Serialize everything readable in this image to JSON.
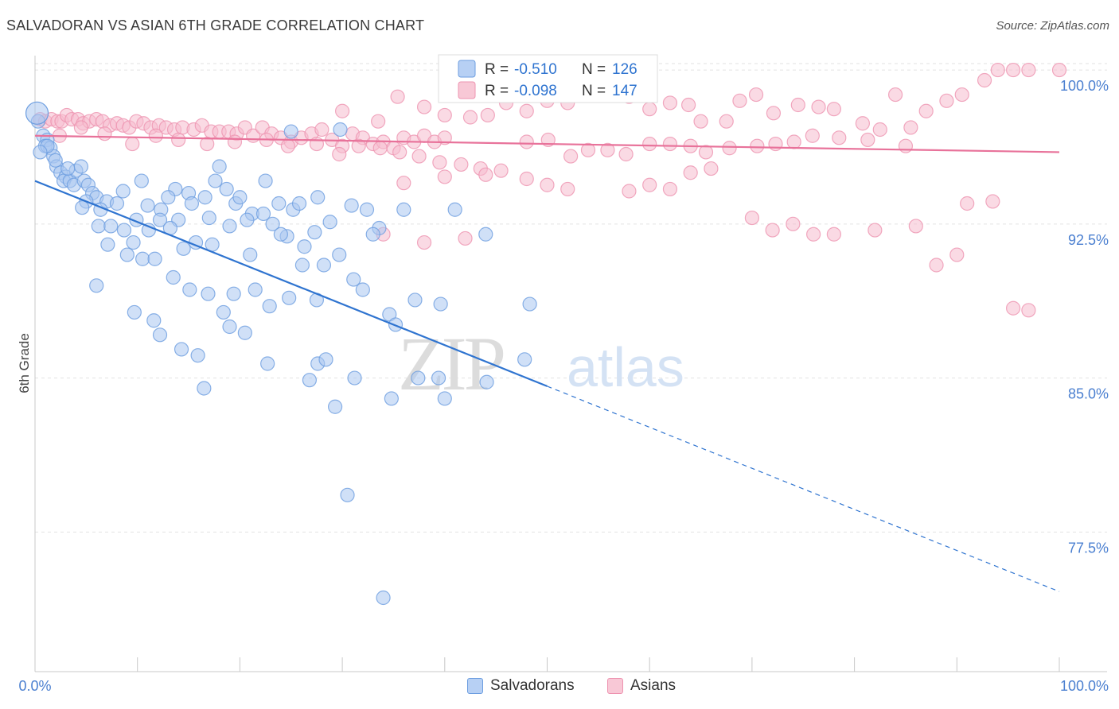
{
  "header": {
    "title": "SALVADORAN VS ASIAN 6TH GRADE CORRELATION CHART",
    "source": "Source: ZipAtlas.com"
  },
  "watermark": {
    "zip": "ZIP",
    "atlas": "atlas"
  },
  "legend": {
    "rows": [
      {
        "r_label": "R =",
        "r_value": "-0.510",
        "n_label": "N =",
        "n_value": "126"
      },
      {
        "r_label": "R =",
        "r_value": "-0.098",
        "n_label": "N =",
        "n_value": "147"
      }
    ],
    "bottom": [
      "Salvadorans",
      "Asians"
    ]
  },
  "colors": {
    "blue_fill": "#a9c6f0",
    "blue_stroke": "#6d9ee0",
    "blue_line": "#2f74d0",
    "pink_fill": "#f6bccd",
    "pink_stroke": "#ee93b0",
    "pink_line": "#e8729a",
    "axis_text": "#4a7fd0",
    "grid": "#e2e2e2"
  },
  "chart_data": {
    "type": "scatter",
    "title": "SALVADORAN VS ASIAN 6TH GRADE CORRELATION CHART",
    "xlabel": "",
    "ylabel": "6th Grade",
    "xlim": [
      0,
      100
    ],
    "ylim": [
      70.7,
      100.7
    ],
    "x_tick_labels": [
      "0.0%",
      "100.0%"
    ],
    "y_ticks": [
      100,
      92.5,
      85,
      77.5
    ],
    "y_tick_labels": [
      "100.0%",
      "92.5%",
      "85.0%",
      "77.5%"
    ],
    "grid": true,
    "legend_position": "top-center",
    "series": [
      {
        "name": "Salvadorans",
        "R": -0.51,
        "N": 126,
        "trend": {
          "x_start": 0,
          "y_start": 94.6,
          "x_end": 100,
          "y_end": 74.6,
          "solid_until_x": 50
        },
        "points": [
          [
            0.3,
            97.5
          ],
          [
            0.8,
            96.8
          ],
          [
            1.2,
            96.6
          ],
          [
            1.0,
            96.3
          ],
          [
            1.5,
            96.2
          ],
          [
            1.8,
            95.8
          ],
          [
            2.1,
            95.3
          ],
          [
            2.5,
            95.0
          ],
          [
            3.0,
            94.8
          ],
          [
            2.8,
            94.6
          ],
          [
            3.4,
            94.6
          ],
          [
            3.8,
            94.4
          ],
          [
            4.0,
            95.1
          ],
          [
            4.5,
            95.3
          ],
          [
            4.8,
            94.6
          ],
          [
            5.2,
            94.4
          ],
          [
            5.6,
            94.0
          ],
          [
            6.0,
            93.8
          ],
          [
            5.0,
            93.6
          ],
          [
            4.6,
            93.3
          ],
          [
            7.0,
            93.6
          ],
          [
            8.6,
            94.1
          ],
          [
            10.4,
            94.6
          ],
          [
            11.0,
            93.4
          ],
          [
            12.3,
            93.2
          ],
          [
            13.7,
            94.2
          ],
          [
            14.0,
            92.7
          ],
          [
            15.0,
            94.0
          ],
          [
            15.3,
            93.5
          ],
          [
            16.6,
            93.8
          ],
          [
            17.6,
            94.6
          ],
          [
            18.0,
            95.3
          ],
          [
            18.7,
            94.2
          ],
          [
            19.6,
            93.5
          ],
          [
            21.2,
            93.0
          ],
          [
            22.3,
            93.0
          ],
          [
            22.5,
            94.6
          ],
          [
            23.8,
            93.5
          ],
          [
            25.2,
            93.2
          ],
          [
            25.8,
            93.5
          ],
          [
            27.3,
            92.1
          ],
          [
            27.6,
            93.8
          ],
          [
            29.8,
            97.1
          ],
          [
            30.9,
            93.4
          ],
          [
            32.4,
            93.2
          ],
          [
            33.6,
            92.3
          ],
          [
            6.2,
            92.4
          ],
          [
            7.4,
            92.4
          ],
          [
            8.7,
            92.2
          ],
          [
            9.9,
            92.7
          ],
          [
            11.1,
            92.2
          ],
          [
            12.2,
            92.7
          ],
          [
            13.2,
            92.3
          ],
          [
            14.5,
            91.3
          ],
          [
            15.7,
            91.6
          ],
          [
            17.3,
            91.5
          ],
          [
            19.0,
            92.4
          ],
          [
            20.7,
            92.7
          ],
          [
            23.2,
            92.5
          ],
          [
            24.6,
            91.9
          ],
          [
            26.3,
            91.4
          ],
          [
            28.2,
            90.5
          ],
          [
            29.7,
            91.0
          ],
          [
            31.1,
            89.8
          ],
          [
            26.1,
            90.5
          ],
          [
            7.1,
            91.5
          ],
          [
            9.6,
            91.6
          ],
          [
            10.5,
            90.8
          ],
          [
            11.7,
            90.8
          ],
          [
            13.5,
            89.9
          ],
          [
            15.1,
            89.3
          ],
          [
            16.9,
            89.1
          ],
          [
            18.4,
            88.2
          ],
          [
            19.4,
            89.1
          ],
          [
            21.5,
            89.3
          ],
          [
            22.9,
            88.5
          ],
          [
            24.8,
            88.9
          ],
          [
            27.5,
            88.8
          ],
          [
            32.0,
            89.3
          ],
          [
            34.6,
            88.1
          ],
          [
            35.2,
            87.6
          ],
          [
            37.1,
            88.8
          ],
          [
            39.6,
            88.6
          ],
          [
            48.3,
            88.6
          ],
          [
            9.7,
            88.2
          ],
          [
            11.6,
            87.8
          ],
          [
            12.2,
            87.1
          ],
          [
            14.3,
            86.4
          ],
          [
            15.9,
            86.1
          ],
          [
            16.5,
            84.5
          ],
          [
            19.0,
            87.5
          ],
          [
            20.5,
            87.2
          ],
          [
            22.7,
            85.7
          ],
          [
            27.6,
            85.7
          ],
          [
            28.4,
            85.9
          ],
          [
            26.8,
            84.9
          ],
          [
            29.3,
            83.6
          ],
          [
            31.2,
            85.0
          ],
          [
            37.4,
            85.0
          ],
          [
            39.4,
            85.0
          ],
          [
            44.1,
            84.8
          ],
          [
            47.8,
            85.9
          ],
          [
            34.8,
            84.0
          ],
          [
            30.5,
            79.3
          ],
          [
            34.0,
            74.3
          ],
          [
            1.2,
            96.3
          ],
          [
            2.0,
            95.6
          ],
          [
            3.2,
            95.2
          ],
          [
            0.5,
            96.0
          ],
          [
            6.4,
            93.2
          ],
          [
            8.0,
            93.5
          ],
          [
            13.0,
            93.8
          ],
          [
            20.0,
            93.8
          ],
          [
            24.0,
            92.0
          ],
          [
            28.8,
            92.6
          ],
          [
            33.0,
            92.0
          ],
          [
            36.0,
            93.2
          ],
          [
            41.0,
            93.2
          ],
          [
            44.0,
            92.0
          ],
          [
            17.0,
            92.8
          ],
          [
            21.0,
            91.0
          ],
          [
            9.0,
            91.0
          ],
          [
            40.0,
            84.0
          ],
          [
            25.0,
            97.0
          ],
          [
            6.0,
            89.5
          ]
        ]
      },
      {
        "name": "Asians",
        "R": -0.098,
        "N": 147,
        "trend": {
          "x_start": 0,
          "y_start": 96.8,
          "x_end": 100,
          "y_end": 96.0
        },
        "points": [
          [
            0.5,
            97.6
          ],
          [
            1.0,
            97.5
          ],
          [
            1.6,
            97.6
          ],
          [
            2.2,
            97.5
          ],
          [
            2.6,
            97.5
          ],
          [
            3.1,
            97.8
          ],
          [
            3.6,
            97.6
          ],
          [
            4.2,
            97.6
          ],
          [
            4.7,
            97.4
          ],
          [
            5.3,
            97.5
          ],
          [
            6.0,
            97.6
          ],
          [
            6.6,
            97.5
          ],
          [
            7.3,
            97.3
          ],
          [
            8.0,
            97.4
          ],
          [
            8.6,
            97.3
          ],
          [
            9.2,
            97.2
          ],
          [
            9.9,
            97.5
          ],
          [
            10.6,
            97.4
          ],
          [
            11.3,
            97.2
          ],
          [
            12.1,
            97.3
          ],
          [
            12.8,
            97.2
          ],
          [
            13.6,
            97.1
          ],
          [
            14.4,
            97.2
          ],
          [
            15.5,
            97.1
          ],
          [
            16.3,
            97.3
          ],
          [
            17.2,
            97.0
          ],
          [
            18.0,
            97.0
          ],
          [
            18.9,
            97.0
          ],
          [
            19.7,
            96.9
          ],
          [
            20.5,
            97.2
          ],
          [
            21.3,
            96.8
          ],
          [
            22.2,
            97.2
          ],
          [
            23.1,
            96.9
          ],
          [
            24.0,
            96.7
          ],
          [
            25.0,
            96.5
          ],
          [
            26.0,
            96.7
          ],
          [
            27.0,
            96.9
          ],
          [
            28.0,
            97.1
          ],
          [
            29.0,
            96.6
          ],
          [
            30.0,
            96.3
          ],
          [
            31.0,
            96.9
          ],
          [
            32.0,
            96.7
          ],
          [
            33.0,
            96.4
          ],
          [
            34.0,
            96.5
          ],
          [
            35.0,
            96.2
          ],
          [
            36.0,
            96.7
          ],
          [
            37.0,
            96.5
          ],
          [
            38.0,
            96.8
          ],
          [
            39.0,
            96.5
          ],
          [
            40.0,
            96.7
          ],
          [
            2.4,
            96.8
          ],
          [
            4.5,
            97.2
          ],
          [
            6.8,
            96.9
          ],
          [
            9.5,
            96.4
          ],
          [
            11.8,
            96.8
          ],
          [
            14.0,
            96.6
          ],
          [
            16.8,
            96.4
          ],
          [
            19.5,
            96.5
          ],
          [
            22.6,
            96.6
          ],
          [
            24.7,
            96.3
          ],
          [
            27.5,
            96.4
          ],
          [
            29.7,
            95.9
          ],
          [
            31.6,
            96.3
          ],
          [
            33.7,
            96.2
          ],
          [
            35.6,
            96.0
          ],
          [
            37.5,
            95.8
          ],
          [
            39.5,
            95.5
          ],
          [
            41.6,
            95.4
          ],
          [
            43.5,
            95.2
          ],
          [
            45.5,
            95.1
          ],
          [
            48.0,
            96.5
          ],
          [
            50.1,
            96.6
          ],
          [
            52.3,
            95.8
          ],
          [
            54.0,
            96.1
          ],
          [
            55.9,
            96.1
          ],
          [
            57.7,
            95.9
          ],
          [
            60.0,
            96.4
          ],
          [
            62.0,
            96.4
          ],
          [
            64.0,
            96.3
          ],
          [
            65.5,
            96.0
          ],
          [
            67.8,
            96.2
          ],
          [
            70.5,
            96.3
          ],
          [
            72.3,
            96.4
          ],
          [
            74.1,
            96.5
          ],
          [
            75.9,
            96.8
          ],
          [
            78.5,
            96.7
          ],
          [
            81.3,
            96.6
          ],
          [
            85.0,
            96.3
          ],
          [
            30.0,
            98.0
          ],
          [
            33.5,
            97.5
          ],
          [
            35.4,
            98.7
          ],
          [
            38.0,
            98.2
          ],
          [
            40.0,
            97.8
          ],
          [
            42.5,
            97.7
          ],
          [
            44.2,
            97.8
          ],
          [
            46.0,
            98.4
          ],
          [
            48.0,
            98.0
          ],
          [
            50.0,
            98.5
          ],
          [
            52.0,
            98.4
          ],
          [
            54.5,
            98.9
          ],
          [
            56.5,
            99.0
          ],
          [
            58.0,
            98.7
          ],
          [
            60.0,
            98.1
          ],
          [
            62.0,
            98.4
          ],
          [
            63.8,
            98.3
          ],
          [
            65.0,
            97.5
          ],
          [
            67.5,
            97.5
          ],
          [
            68.8,
            98.5
          ],
          [
            70.4,
            98.8
          ],
          [
            72.1,
            97.9
          ],
          [
            74.5,
            98.3
          ],
          [
            76.5,
            98.2
          ],
          [
            78.0,
            98.1
          ],
          [
            80.8,
            97.4
          ],
          [
            82.5,
            97.1
          ],
          [
            84.0,
            98.8
          ],
          [
            85.5,
            97.2
          ],
          [
            87.0,
            98.0
          ],
          [
            89.0,
            98.5
          ],
          [
            90.5,
            98.8
          ],
          [
            92.7,
            99.5
          ],
          [
            94.0,
            100.0
          ],
          [
            95.5,
            100.0
          ],
          [
            97.0,
            100.0
          ],
          [
            100.0,
            100.0
          ],
          [
            36.0,
            94.5
          ],
          [
            40.0,
            94.8
          ],
          [
            44.0,
            94.9
          ],
          [
            48.0,
            94.7
          ],
          [
            50.0,
            94.4
          ],
          [
            52.0,
            94.2
          ],
          [
            58.0,
            94.1
          ],
          [
            60.0,
            94.4
          ],
          [
            62.0,
            94.2
          ],
          [
            64.0,
            95.0
          ],
          [
            66.0,
            95.2
          ],
          [
            70.0,
            92.8
          ],
          [
            72.0,
            92.2
          ],
          [
            74.0,
            92.5
          ],
          [
            76.0,
            92.0
          ],
          [
            78.0,
            92.0
          ],
          [
            82.0,
            92.2
          ],
          [
            86.0,
            92.4
          ],
          [
            91.0,
            93.5
          ],
          [
            93.5,
            93.6
          ],
          [
            95.5,
            88.4
          ],
          [
            97.0,
            88.3
          ],
          [
            34.0,
            92.0
          ],
          [
            38.0,
            91.6
          ],
          [
            42.0,
            91.8
          ],
          [
            88.0,
            90.5
          ],
          [
            90.0,
            91.0
          ]
        ]
      }
    ]
  }
}
